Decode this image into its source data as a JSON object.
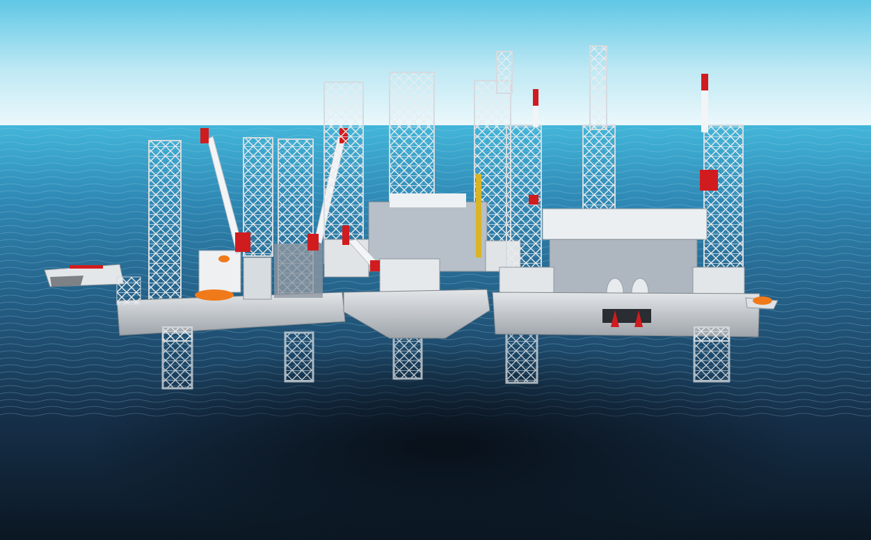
{
  "scene": {
    "subject": "offshore-jackup-platforms",
    "palette": {
      "sky_top": "#5fc7e6",
      "sky_horizon": "#e9f7fb",
      "sea_far": "#3aa8cf",
      "sea_mid": "#2a6f96",
      "sea_near": "#0f1d2a",
      "steel": "#d7dde2",
      "hull": "#c9cdd1",
      "crane_red": "#d01c1f",
      "lifeboat_orange": "#f07a1a",
      "equipment_yellow": "#d9b526"
    }
  }
}
